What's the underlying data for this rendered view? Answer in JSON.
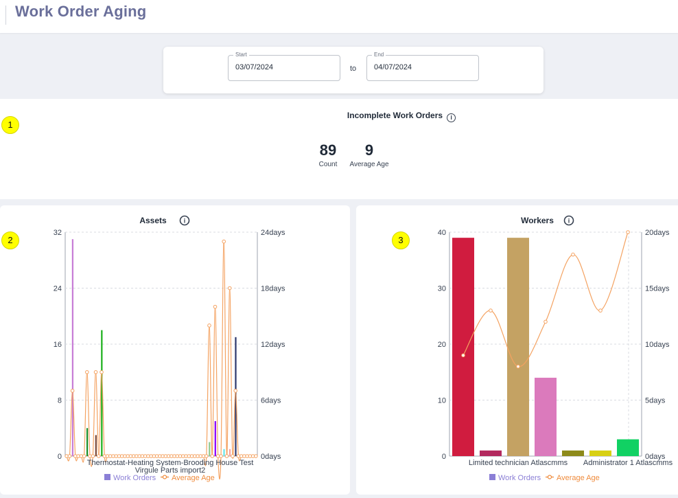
{
  "page": {
    "title": "Work Order Aging"
  },
  "date_range": {
    "start_label": "Start",
    "start_value": "03/07/2024",
    "separator": "to",
    "end_label": "End",
    "end_value": "04/07/2024"
  },
  "incomplete": {
    "title": "Incomplete Work Orders",
    "count_value": "89",
    "count_label": "Count",
    "avg_value": "9",
    "avg_label": "Average Age"
  },
  "badges": [
    "1",
    "2",
    "3"
  ],
  "icons": {
    "info": "info-icon"
  },
  "colors": {
    "title": "#6a6f9a",
    "line": "#f4a261",
    "legend_bar": "#8b7fd6",
    "legend_line": "#ef8b3c"
  },
  "chart_data": [
    {
      "type": "bar",
      "title": "Assets",
      "left_axis_ticks": [
        "32",
        "24",
        "16",
        "8",
        "0"
      ],
      "right_axis_ticks": [
        "24days",
        "18days",
        "12days",
        "6days",
        "0days"
      ],
      "ylim_left": [
        0,
        32
      ],
      "ylim_right": [
        0,
        24
      ],
      "x_labels": [
        "Thermostat-Heating System-Brooding House Test",
        "Virgule Parts import2"
      ],
      "legend": [
        "Work Orders",
        "Average Age"
      ],
      "bars": [
        {
          "i": 2,
          "value": 31,
          "color": "#c77dd6"
        },
        {
          "i": 7,
          "value": 4,
          "color": "#1a8f2a"
        },
        {
          "i": 10,
          "value": 3,
          "color": "#7a4a3a"
        },
        {
          "i": 12,
          "value": 18,
          "color": "#1db01d"
        },
        {
          "i": 49,
          "value": 2,
          "color": "#8fc88f"
        },
        {
          "i": 51,
          "value": 5,
          "color": "#8a00ff"
        },
        {
          "i": 54,
          "value": 1,
          "color": "#67e6ea"
        },
        {
          "i": 56,
          "value": 1,
          "color": "#f5a3a3"
        },
        {
          "i": 58,
          "value": 17,
          "color": "#2f3a6e"
        }
      ],
      "count": 66,
      "age_points": [
        [
          2,
          7
        ],
        [
          7,
          9
        ],
        [
          10,
          9
        ],
        [
          12,
          9
        ],
        [
          49,
          14
        ],
        [
          51,
          16
        ],
        [
          54,
          23
        ],
        [
          56,
          18
        ],
        [
          58,
          7
        ]
      ]
    },
    {
      "type": "bar",
      "title": "Workers",
      "left_axis_ticks": [
        "40",
        "30",
        "20",
        "10",
        "0"
      ],
      "right_axis_ticks": [
        "20days",
        "15days",
        "10days",
        "5days",
        "0days"
      ],
      "ylim_left": [
        0,
        40
      ],
      "ylim_right": [
        0,
        20
      ],
      "x_labels": [
        "Limited technician Atlascmms",
        "Administrator 1 Atlascmms"
      ],
      "legend": [
        "Work Orders",
        "Average Age"
      ],
      "categories": 7,
      "values": [
        39,
        1,
        39,
        14,
        1,
        1,
        3
      ],
      "colors": [
        "#d01c3f",
        "#b3295e",
        "#c4a263",
        "#db7abc",
        "#8d8a1a",
        "#d8d013",
        "#11d163"
      ],
      "age": [
        9,
        13,
        8,
        12,
        18,
        13,
        20
      ]
    }
  ]
}
